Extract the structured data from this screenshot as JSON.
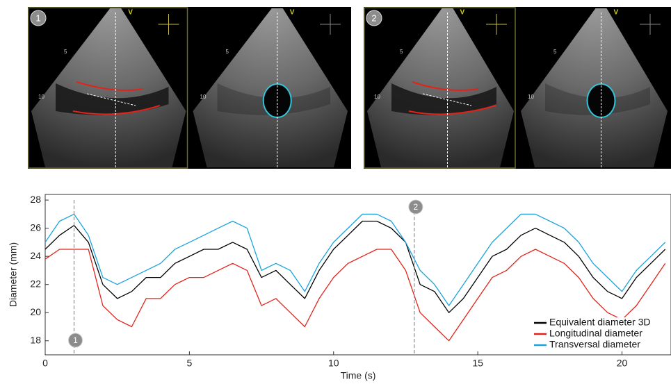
{
  "image_panels": [
    {
      "badge": "1",
      "views": [
        {
          "marker": "V",
          "depths": [
            "5",
            "10"
          ]
        },
        {
          "marker": "V",
          "depths": [
            "5",
            "10"
          ]
        }
      ]
    },
    {
      "badge": "2",
      "views": [
        {
          "marker": "V",
          "depths": [
            "5",
            "10"
          ]
        },
        {
          "marker": "V",
          "depths": [
            "5",
            "10"
          ]
        }
      ]
    }
  ],
  "chart_data": {
    "type": "line",
    "x_label": "Time (s)",
    "y_label": "Diameter (mm)",
    "x": [
      0,
      0.5,
      1,
      1.5,
      2,
      2.5,
      3,
      3.5,
      4,
      4.5,
      5,
      5.5,
      6,
      6.5,
      7,
      7.5,
      8,
      8.5,
      9,
      9.5,
      10,
      10.5,
      11,
      11.5,
      12,
      12.5,
      13,
      13.5,
      14,
      14.5,
      15,
      15.5,
      16,
      16.5,
      17,
      17.5,
      18,
      18.5,
      19,
      19.5,
      20,
      20.5,
      21,
      21.5
    ],
    "series": [
      {
        "name": "Equivalent diameter 3D",
        "color": "#000000",
        "values": [
          24.5,
          25.5,
          26.2,
          25,
          22,
          21,
          21.5,
          22.5,
          22.5,
          23.5,
          24,
          24.5,
          24.5,
          25,
          24.5,
          22.5,
          23,
          22,
          21,
          23,
          24.5,
          25.5,
          26.5,
          26.5,
          26,
          25,
          22,
          21.5,
          20,
          21,
          22.5,
          24,
          24.5,
          25.5,
          26,
          25.5,
          25,
          24,
          22.5,
          21.5,
          21,
          22.5,
          23.5,
          24.5
        ]
      },
      {
        "name": "Longitudinal diameter",
        "color": "#e2231a",
        "values": [
          23.8,
          24.5,
          24.5,
          24.5,
          20.5,
          19.5,
          19,
          21,
          21,
          22,
          22.5,
          22.5,
          23,
          23.5,
          23,
          20.5,
          21,
          20,
          19,
          21,
          22.5,
          23.5,
          24,
          24.5,
          24.5,
          23,
          20,
          19,
          18,
          19.5,
          21,
          22.5,
          23,
          24,
          24.5,
          24,
          23.5,
          22.5,
          21,
          20,
          19.5,
          20.5,
          22,
          23.5
        ]
      },
      {
        "name": "Transversal diameter",
        "color": "#1ba3dd",
        "values": [
          25,
          26.5,
          27,
          25.5,
          22.5,
          22,
          22.5,
          23,
          23.5,
          24.5,
          25,
          25.5,
          26,
          26.5,
          26,
          23,
          23.5,
          23,
          21.5,
          23.5,
          25,
          26,
          27,
          27,
          26.5,
          25,
          23,
          22,
          20.5,
          22,
          23.5,
          25,
          26,
          27,
          27,
          26.5,
          26,
          25,
          23.5,
          22.5,
          21.5,
          23,
          24,
          25
        ]
      }
    ],
    "markers": [
      {
        "x": 1,
        "label": "1"
      },
      {
        "x": 12.8,
        "label": "2"
      }
    ],
    "xlim": [
      0,
      21.7
    ],
    "ylim": [
      17,
      28.4
    ],
    "xticks": [
      0,
      5,
      10,
      15,
      20
    ],
    "yticks": [
      18,
      20,
      22,
      24,
      26,
      28
    ],
    "legend": "lower right"
  }
}
